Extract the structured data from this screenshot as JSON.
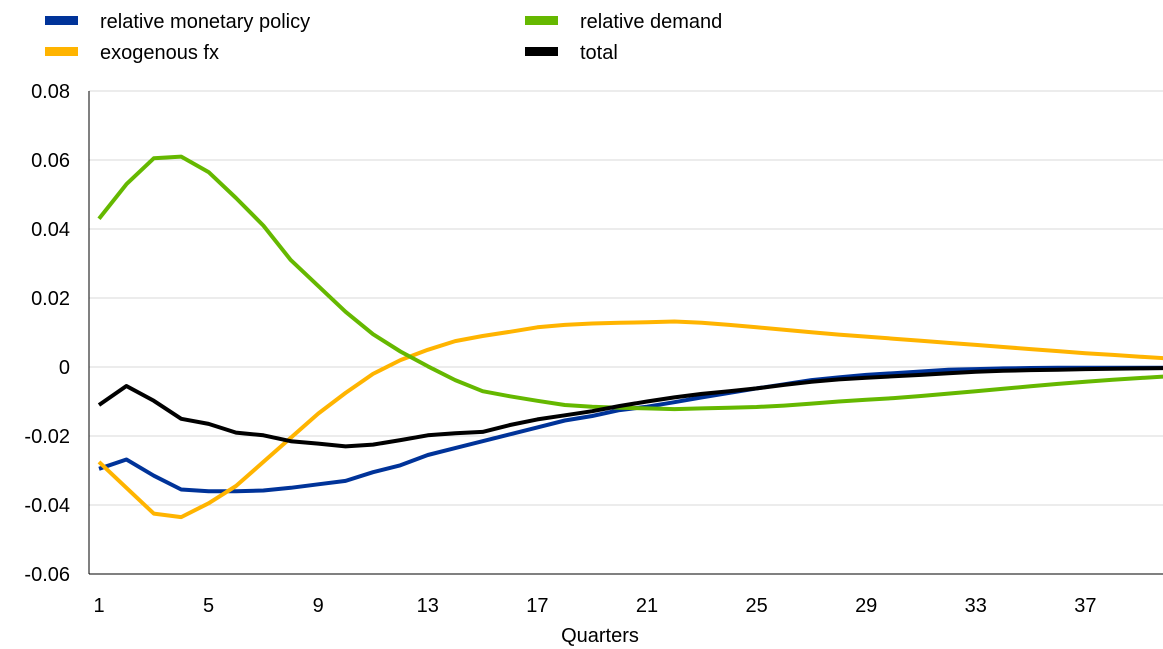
{
  "chart_data": {
    "type": "line",
    "title": "",
    "xlabel": "Quarters",
    "ylabel": "",
    "ylim": [
      -0.06,
      0.08
    ],
    "yticks": [
      -0.06,
      -0.04,
      -0.02,
      0,
      0.02,
      0.04,
      0.06,
      0.08
    ],
    "ytick_labels": [
      "-0.06",
      "-0.04",
      "-0.02",
      "0",
      "0.02",
      "0.04",
      "0.06",
      "0.08"
    ],
    "xlim": [
      1,
      40
    ],
    "xticks": [
      1,
      5,
      9,
      13,
      17,
      21,
      25,
      29,
      33,
      37
    ],
    "xtick_labels": [
      "1",
      "5",
      "9",
      "13",
      "17",
      "21",
      "25",
      "29",
      "33",
      "37"
    ],
    "grid": "horizontal",
    "legend_position": "top",
    "x": [
      1,
      2,
      3,
      4,
      5,
      6,
      7,
      8,
      9,
      10,
      11,
      12,
      13,
      14,
      15,
      16,
      17,
      18,
      19,
      20,
      21,
      22,
      23,
      24,
      25,
      26,
      27,
      28,
      29,
      30,
      31,
      32,
      33,
      34,
      35,
      36,
      37,
      38,
      39,
      40
    ],
    "series": [
      {
        "name": "relative monetary policy",
        "color": "#003399",
        "values": [
          -0.0295,
          -0.0268,
          -0.0315,
          -0.0355,
          -0.036,
          -0.036,
          -0.0358,
          -0.035,
          -0.034,
          -0.033,
          -0.0305,
          -0.0285,
          -0.0255,
          -0.0235,
          -0.0215,
          -0.0195,
          -0.0175,
          -0.0155,
          -0.0142,
          -0.0125,
          -0.0115,
          -0.0102,
          -0.0088,
          -0.0075,
          -0.0062,
          -0.005,
          -0.0038,
          -0.003,
          -0.0023,
          -0.0018,
          -0.0013,
          -0.0008,
          -0.0006,
          -0.0004,
          -0.0003,
          -0.0002,
          -0.0002,
          -0.0002,
          -0.0002,
          -0.0002
        ]
      },
      {
        "name": "exogenous fx",
        "color": "#FFB400",
        "values": [
          -0.0275,
          -0.035,
          -0.0425,
          -0.0435,
          -0.0395,
          -0.0345,
          -0.0275,
          -0.0205,
          -0.0135,
          -0.0075,
          -0.002,
          0.002,
          0.005,
          0.0075,
          0.009,
          0.0102,
          0.0115,
          0.0122,
          0.0126,
          0.0128,
          0.013,
          0.0132,
          0.0128,
          0.0122,
          0.0115,
          0.0108,
          0.0101,
          0.0094,
          0.0088,
          0.0082,
          0.0076,
          0.007,
          0.0064,
          0.0058,
          0.0052,
          0.0046,
          0.004,
          0.0035,
          0.003,
          0.0025
        ]
      },
      {
        "name": "relative demand",
        "color": "#65B800",
        "values": [
          0.043,
          0.053,
          0.0605,
          0.061,
          0.0565,
          0.049,
          0.041,
          0.031,
          0.0235,
          0.016,
          0.0095,
          0.0045,
          0.0002,
          -0.0038,
          -0.007,
          -0.0085,
          -0.0098,
          -0.011,
          -0.0115,
          -0.0118,
          -0.012,
          -0.0122,
          -0.012,
          -0.0118,
          -0.0116,
          -0.0112,
          -0.0106,
          -0.01,
          -0.0095,
          -0.009,
          -0.0084,
          -0.0077,
          -0.007,
          -0.0063,
          -0.0056,
          -0.0049,
          -0.0043,
          -0.0037,
          -0.0032,
          -0.0027
        ]
      },
      {
        "name": "total",
        "color": "#000000",
        "values": [
          -0.011,
          -0.0055,
          -0.0098,
          -0.015,
          -0.0165,
          -0.019,
          -0.0198,
          -0.0215,
          -0.0222,
          -0.023,
          -0.0225,
          -0.0212,
          -0.0198,
          -0.0192,
          -0.0188,
          -0.0168,
          -0.0152,
          -0.014,
          -0.0128,
          -0.0113,
          -0.01,
          -0.0088,
          -0.0078,
          -0.007,
          -0.0062,
          -0.0052,
          -0.0043,
          -0.0036,
          -0.0031,
          -0.0027,
          -0.0023,
          -0.0018,
          -0.0014,
          -0.0011,
          -0.0009,
          -0.0008,
          -0.0006,
          -0.0005,
          -0.0004,
          -0.0003
        ]
      }
    ]
  }
}
